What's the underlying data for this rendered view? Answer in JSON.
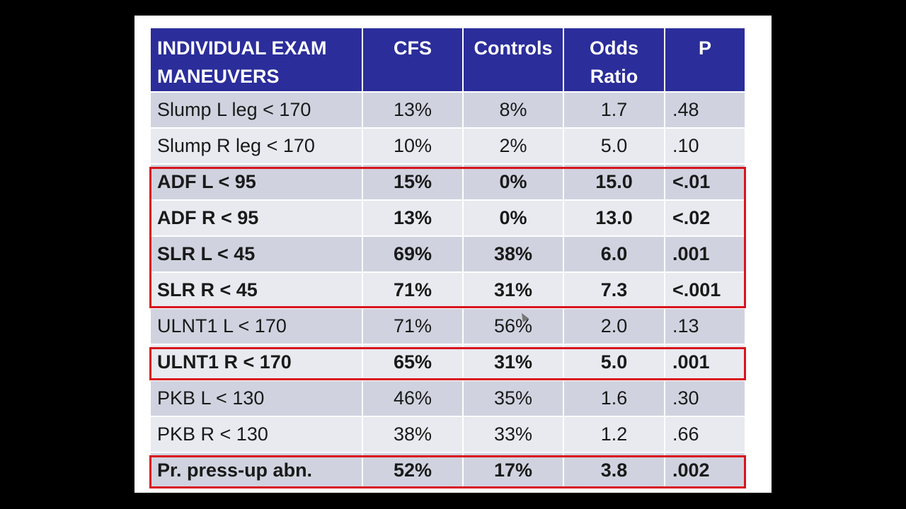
{
  "table": {
    "headers": [
      "INDIVIDUAL EXAM MANEUVERS",
      "CFS",
      "Controls",
      "Odds Ratio",
      "P"
    ],
    "rows": [
      {
        "maneuver": "Slump L leg < 170",
        "cfs": "13%",
        "controls": "8%",
        "odds_ratio": "1.7",
        "p": ".48",
        "bold": false
      },
      {
        "maneuver": "Slump R leg < 170",
        "cfs": "10%",
        "controls": "2%",
        "odds_ratio": "5.0",
        "p": ".10",
        "bold": false
      },
      {
        "maneuver": "ADF L < 95",
        "cfs": "15%",
        "controls": "0%",
        "odds_ratio": "15.0",
        "p": "<.01",
        "bold": true
      },
      {
        "maneuver": "ADF R < 95",
        "cfs": "13%",
        "controls": "0%",
        "odds_ratio": "13.0",
        "p": "<.02",
        "bold": true
      },
      {
        "maneuver": "SLR L < 45",
        "cfs": "69%",
        "controls": "38%",
        "odds_ratio": "6.0",
        "p": ".001",
        "bold": true
      },
      {
        "maneuver": "SLR R < 45",
        "cfs": "71%",
        "controls": "31%",
        "odds_ratio": "7.3",
        "p": "<.001",
        "bold": true
      },
      {
        "maneuver": "ULNT1 L < 170",
        "cfs": "71%",
        "controls": "56%",
        "odds_ratio": "2.0",
        "p": ".13",
        "bold": false
      },
      {
        "maneuver": "ULNT1 R < 170",
        "cfs": "65%",
        "controls": "31%",
        "odds_ratio": "5.0",
        "p": ".001",
        "bold": true
      },
      {
        "maneuver": "PKB  L < 130",
        "cfs": "46%",
        "controls": "35%",
        "odds_ratio": "1.6",
        "p": ".30",
        "bold": false
      },
      {
        "maneuver": "PKB R < 130",
        "cfs": "38%",
        "controls": "33%",
        "odds_ratio": "1.2",
        "p": ".66",
        "bold": false
      },
      {
        "maneuver": "Pr. press-up abn.",
        "cfs": "52%",
        "controls": "17%",
        "odds_ratio": "3.8",
        "p": ".002",
        "bold": true
      }
    ],
    "highlighted_groups": [
      [
        2,
        5
      ],
      [
        7,
        7
      ],
      [
        10,
        10
      ]
    ]
  },
  "colors": {
    "header_bg": "#2b2d9a",
    "row_shade": "#d0d3df",
    "row_light": "#e9eaf0",
    "highlight_border": "#d8141c"
  }
}
